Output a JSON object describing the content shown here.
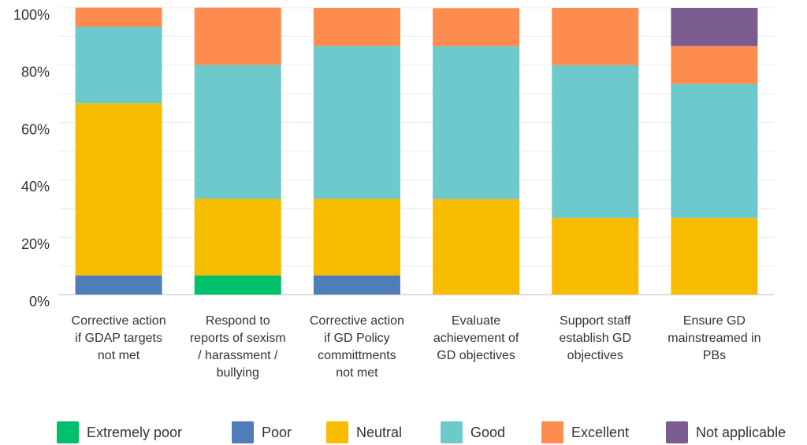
{
  "chart_data": {
    "type": "stacked_bar",
    "categories": [
      "Corrective action if GDAP targets not met",
      "Respond to reports of sexism / harassment / bullying",
      "Corrective action if GD Policy committments not met",
      "Evaluate achievement of GD objectives",
      "Support staff establish GD objectives",
      "Ensure GD mainstreamed in PBs"
    ],
    "series": [
      {
        "name": "Extremely poor",
        "color": "#00c06b",
        "values": [
          0,
          6.7,
          0,
          0,
          0,
          0
        ]
      },
      {
        "name": "Poor",
        "color": "#4f7dba",
        "values": [
          6.7,
          0,
          6.7,
          0,
          0,
          0
        ]
      },
      {
        "name": "Neutral",
        "color": "#f7bc00",
        "values": [
          60,
          26.7,
          26.7,
          33.3,
          26.7,
          26.7
        ]
      },
      {
        "name": "Good",
        "color": "#6ccacc",
        "values": [
          26.7,
          46.7,
          53.3,
          53.3,
          53.3,
          46.7
        ]
      },
      {
        "name": "Excellent",
        "color": "#ff8c4f",
        "values": [
          6.7,
          20,
          13.3,
          13.3,
          20,
          13.3
        ]
      },
      {
        "name": "Not applicable",
        "color": "#7b5c91",
        "values": [
          0,
          0,
          0,
          0,
          0,
          13.3
        ]
      }
    ],
    "ylim": [
      0,
      100
    ],
    "yticks": [
      {
        "value": 0,
        "label": "0%"
      },
      {
        "value": 20,
        "label": "20%"
      },
      {
        "value": 40,
        "label": "40%"
      },
      {
        "value": 60,
        "label": "60%"
      },
      {
        "value": 80,
        "label": "80%"
      },
      {
        "value": 100,
        "label": "100%"
      }
    ],
    "minor_yticks": [
      10,
      30,
      50,
      70,
      90
    ],
    "grid": true,
    "legend": "bottom"
  }
}
